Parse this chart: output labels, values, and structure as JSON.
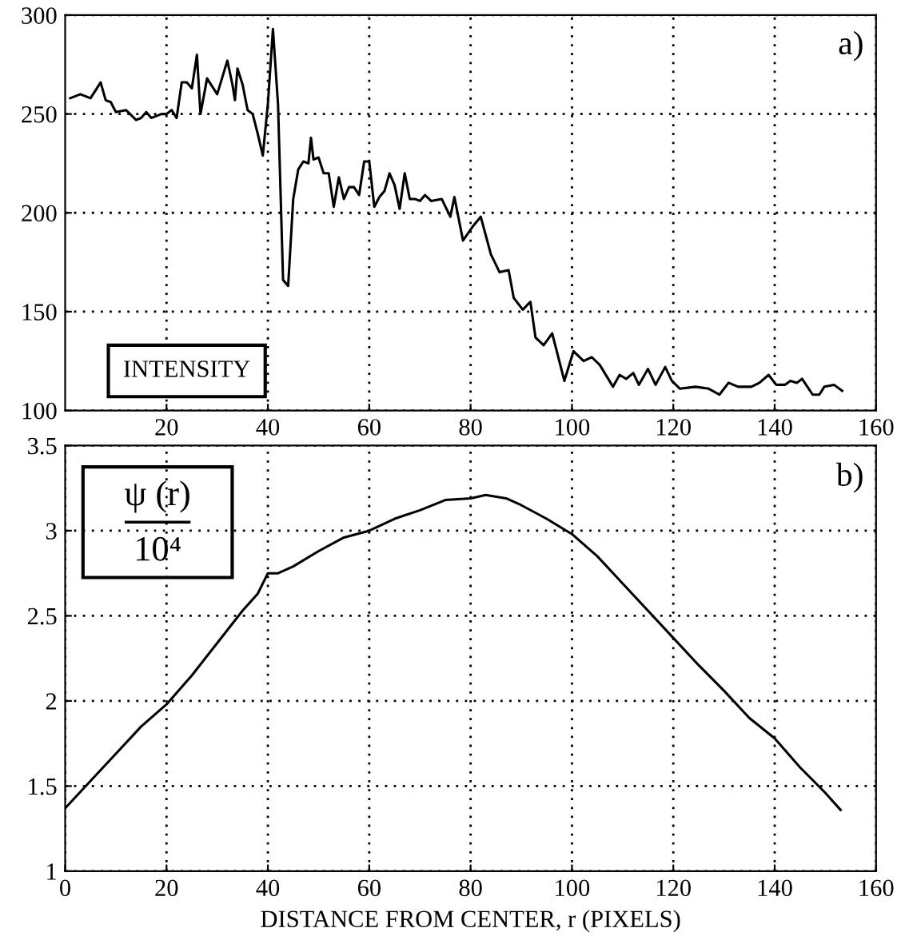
{
  "chart_data": [
    {
      "type": "line",
      "annotations": [
        "a)",
        "INTENSITY"
      ],
      "grid": true,
      "line_style": "solid",
      "marker": "none",
      "xlim": [
        0,
        160
      ],
      "xticks": [
        20,
        40,
        60,
        80,
        100,
        120,
        140,
        160
      ],
      "ylim": [
        100,
        300
      ],
      "yticks": [
        100,
        150,
        200,
        250,
        300
      ],
      "series": [
        {
          "color": "#000000",
          "x": [
            1,
            3,
            5,
            7,
            8,
            9,
            10,
            12,
            14,
            15,
            16,
            17,
            19,
            20,
            21,
            22,
            23,
            24,
            25,
            26,
            26.7,
            28,
            30,
            32,
            33,
            33.5,
            34,
            35,
            36,
            37,
            38,
            39,
            40,
            41,
            42,
            43,
            44,
            45,
            46,
            47,
            48,
            48.5,
            49,
            50,
            51,
            52,
            53,
            54,
            55,
            56,
            57,
            58,
            59,
            60,
            61,
            62,
            63,
            64,
            65,
            66,
            67,
            68,
            69,
            70,
            71,
            72.2,
            74.3,
            76,
            76.8,
            78.5,
            80.4,
            82,
            84,
            85.7,
            87.5,
            88.5,
            90.3,
            91.8,
            92.8,
            94.4,
            96.1,
            98.5,
            100.3,
            102.3,
            103.9,
            105.5,
            108.1,
            109.4,
            110.7,
            112.1,
            113.2,
            115,
            116.5,
            118.4,
            119.7,
            121.3,
            124.4,
            127,
            129.1,
            130.9,
            132.8,
            135.4,
            137,
            138.8,
            140.3,
            142,
            143.1,
            144.4,
            145.4,
            147.5,
            148.8,
            149.8,
            151.7,
            153.3
          ],
          "values": [
            258,
            260,
            258,
            266,
            257,
            256,
            251,
            252,
            247,
            248,
            251,
            248,
            250,
            250,
            252,
            248,
            266,
            266,
            263,
            280,
            250,
            268,
            260,
            277,
            265,
            257,
            273,
            265,
            252,
            250,
            240,
            229,
            255,
            293,
            255,
            166,
            163,
            207,
            222,
            226,
            225,
            238,
            227,
            228,
            220,
            220,
            203,
            218,
            207,
            213,
            213,
            209,
            226,
            226,
            203,
            208,
            211,
            220,
            214,
            202,
            220,
            207,
            207,
            206,
            209,
            206,
            207,
            198,
            208,
            186,
            193,
            198,
            179,
            170,
            171,
            157,
            151,
            155,
            137,
            133,
            139,
            115,
            130,
            125,
            127,
            123,
            112,
            118,
            116,
            119,
            113,
            121,
            113,
            122,
            115,
            111,
            112,
            111,
            108,
            114,
            112,
            112,
            114,
            118,
            113,
            113,
            115,
            114,
            116,
            108,
            108,
            112,
            113,
            110
          ]
        }
      ]
    },
    {
      "type": "line",
      "xlabel": "DISTANCE FROM CENTER, r (PIXELS)",
      "annotations": [
        "b)",
        "ψ (r)",
        "10⁴"
      ],
      "grid": true,
      "line_style": "solid",
      "marker": "none",
      "xlim": [
        0,
        160
      ],
      "xticks": [
        0,
        20,
        40,
        60,
        80,
        100,
        120,
        140,
        160
      ],
      "ylim": [
        1,
        3.5
      ],
      "yticks": [
        1,
        1.5,
        2,
        2.5,
        3,
        3.5
      ],
      "series": [
        {
          "color": "#000000",
          "x": [
            0,
            5,
            10,
            15,
            20,
            25,
            30,
            35,
            38,
            40,
            42,
            45,
            50,
            55,
            60,
            65,
            70,
            75,
            80,
            83,
            87,
            90,
            95,
            100,
            105,
            110,
            115,
            120,
            125,
            130,
            135,
            140,
            145,
            150,
            153
          ],
          "values": [
            1.37,
            1.53,
            1.69,
            1.85,
            1.98,
            2.15,
            2.34,
            2.53,
            2.63,
            2.75,
            2.75,
            2.79,
            2.88,
            2.96,
            3.0,
            3.07,
            3.12,
            3.18,
            3.19,
            3.21,
            3.19,
            3.15,
            3.07,
            2.98,
            2.85,
            2.69,
            2.53,
            2.37,
            2.21,
            2.06,
            1.9,
            1.78,
            1.61,
            1.46,
            1.36
          ]
        }
      ]
    }
  ]
}
